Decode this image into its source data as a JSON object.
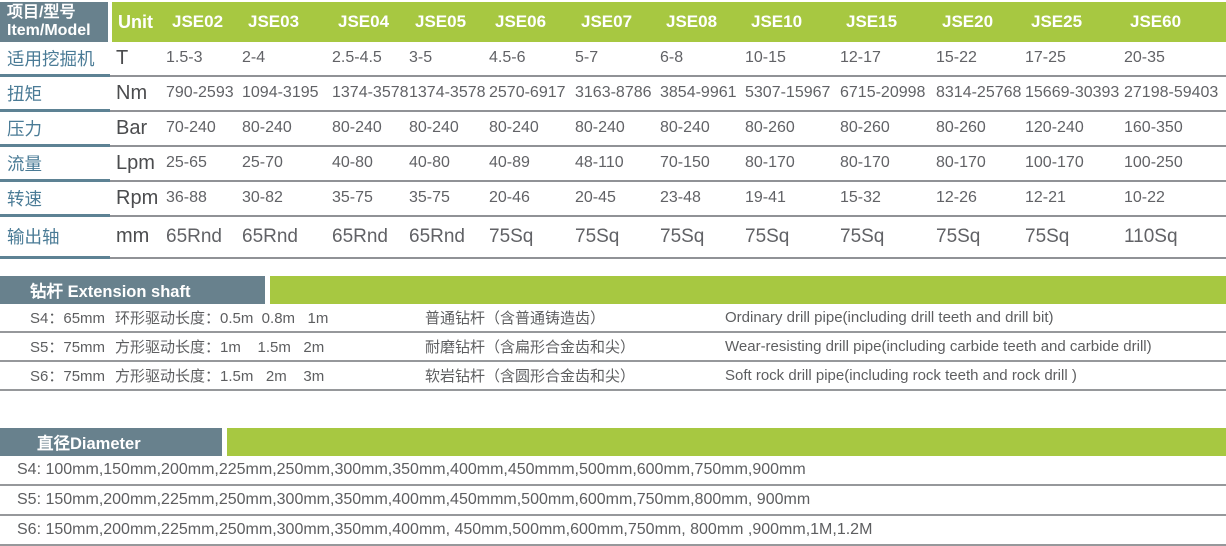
{
  "colors": {
    "accent_green": "#a7c841",
    "banner_slate": "#68818d",
    "row_label_blue": "#4a7b96",
    "label_underline": "#5d8294",
    "data_text": "#616266",
    "row_line": "#909296"
  },
  "spec_table": {
    "corner_line1": "项目/型号",
    "corner_line2": "Item/Model",
    "unit_header": "Unit",
    "models": [
      "JSE02",
      "JSE03",
      "JSE04",
      "JSE05",
      "JSE06",
      "JSE07",
      "JSE08",
      "JSE10",
      "JSE15",
      "JSE20",
      "JSE25",
      "JSE60"
    ],
    "rows": [
      {
        "label": "适用挖掘机",
        "unit": "T",
        "values": [
          "1.5-3",
          "2-4",
          "2.5-4.5",
          "3-5",
          "4.5-6",
          "5-7",
          "6-8",
          "10-15",
          "12-17",
          "15-22",
          "17-25",
          "20-35"
        ]
      },
      {
        "label": "扭矩",
        "unit": "Nm",
        "values": [
          "790-2593",
          "1094-3195",
          "1374-3578",
          "1374-3578",
          "2570-6917",
          "3163-8786",
          "3854-9961",
          "5307-15967",
          "6715-20998",
          "8314-25768",
          "15669-30393",
          "27198-59403"
        ]
      },
      {
        "label": "压力",
        "unit": "Bar",
        "values": [
          "70-240",
          "80-240",
          "80-240",
          "80-240",
          "80-240",
          "80-240",
          "80-240",
          "80-260",
          "80-260",
          "80-260",
          "120-240",
          "160-350"
        ]
      },
      {
        "label": "流量",
        "unit": "Lpm",
        "values": [
          "25-65",
          "25-70",
          "40-80",
          "40-80",
          "40-89",
          "48-110",
          "70-150",
          "80-170",
          "80-170",
          "80-170",
          "100-170",
          "100-250"
        ]
      },
      {
        "label": "转速",
        "unit": "Rpm",
        "values": [
          "36-88",
          "30-82",
          "35-75",
          "35-75",
          "20-46",
          "20-45",
          "23-48",
          "19-41",
          "15-32",
          "12-26",
          "12-21",
          "10-22"
        ]
      },
      {
        "label": "输出轴",
        "unit": "mm",
        "values": [
          "65Rnd",
          "65Rnd",
          "65Rnd",
          "65Rnd",
          "75Sq",
          "75Sq",
          "75Sq",
          "75Sq",
          "75Sq",
          "75Sq",
          "75Sq",
          "110Sq"
        ]
      }
    ]
  },
  "extension_shaft": {
    "title": "钻杆 Extension shaft",
    "rows": [
      {
        "size": "S4：65mm",
        "drive": "环形驱动长度：0.5m  0.8m   1m",
        "type_cn": "普通钻杆（含普通铸造齿）",
        "type_en": "Ordinary drill pipe(including drill teeth and drill bit)"
      },
      {
        "size": "S5：75mm",
        "drive": "方形驱动长度：1m    1.5m   2m",
        "type_cn": "耐磨钻杆（含扁形合金齿和尖）",
        "type_en": "Wear-resisting drill pipe(including carbide teeth and carbide drill)"
      },
      {
        "size": "S6：75mm",
        "drive": "方形驱动长度：1.5m   2m    3m",
        "type_cn": "软岩钻杆（含圆形合金齿和尖）",
        "type_en": "Soft rock drill pipe(including rock teeth and rock drill )"
      }
    ]
  },
  "diameter": {
    "title": "直径Diameter",
    "rows": [
      "S4: 100mm,150mm,200mm,225mm,250mm,300mm,350mm,400mm,450mmm,500mm,600mm,750mm,900mm",
      "S5: 150mm,200mm,225mm,250mm,300mm,350mm,400mm,450mmm,500mm,600mm,750mm,800mm, 900mm",
      "S6: 150mm,200mm,225mm,250mm,300mm,350mm,400mm, 450mm,500mm,600mm,750mm, 800mm ,900mm,1M,1.2M"
    ]
  }
}
